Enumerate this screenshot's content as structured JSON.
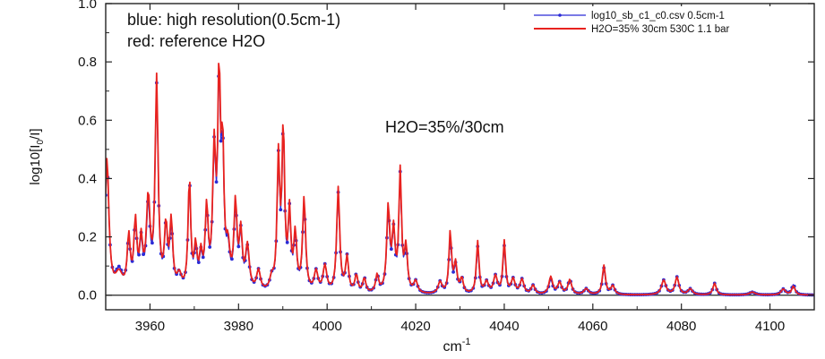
{
  "chart_data": {
    "type": "line",
    "xlabel": "cm",
    "xlabel_sup": "-1",
    "ylabel": "log10[I",
    "ylabel_sub": "0",
    "ylabel_tail": "/I]",
    "xlim": [
      3950,
      4110
    ],
    "ylim": [
      -0.05,
      1.0
    ],
    "xticks": [
      3960,
      3980,
      4000,
      4020,
      4040,
      4060,
      4080,
      4100
    ],
    "xtick_labels": [
      "3960",
      "3980",
      "4000",
      "4020",
      "4040",
      "4060",
      "4080",
      "4100"
    ],
    "yticks": [
      0.0,
      0.2,
      0.4,
      0.6,
      0.8,
      1.0
    ],
    "ytick_labels": [
      "0.0",
      "0.2",
      "0.4",
      "0.6",
      "0.8",
      "1.0"
    ],
    "reference_line_y": 0.0,
    "annotations": [
      {
        "text": "blue: high resolution(0.5cm-1)"
      },
      {
        "text": "red: reference H2O"
      },
      {
        "text": "H2O=35%/30cm"
      }
    ],
    "legend_position": "top-right",
    "series": [
      {
        "name": "log10_sb_c1_c0.csv 0.5cm-1",
        "color": "#2b2bd6",
        "marker": "dot",
        "peaks": [
          [
            3950.3,
            0.45,
            0.5
          ],
          [
            3953.0,
            0.07,
            1.0
          ],
          [
            3955.2,
            0.17,
            0.4
          ],
          [
            3956.7,
            0.22,
            0.4
          ],
          [
            3958.0,
            0.15,
            0.4
          ],
          [
            3959.6,
            0.28,
            0.5
          ],
          [
            3961.5,
            0.69,
            0.4
          ],
          [
            3963.6,
            0.2,
            0.4
          ],
          [
            3964.8,
            0.21,
            0.4
          ],
          [
            3966.6,
            0.05,
            0.6
          ],
          [
            3968.9,
            0.37,
            0.35
          ],
          [
            3970.3,
            0.13,
            0.4
          ],
          [
            3971.5,
            0.1,
            0.4
          ],
          [
            3972.8,
            0.26,
            0.4
          ],
          [
            3974.5,
            0.44,
            0.4
          ],
          [
            3975.6,
            0.66,
            0.35
          ],
          [
            3976.4,
            0.43,
            0.35
          ],
          [
            3977.6,
            0.12,
            0.5
          ],
          [
            3979.3,
            0.27,
            0.4
          ],
          [
            3980.5,
            0.18,
            0.4
          ],
          [
            3982.0,
            0.14,
            0.5
          ],
          [
            3984.5,
            0.07,
            0.5
          ],
          [
            3987.5,
            0.04,
            0.5
          ],
          [
            3989.0,
            0.43,
            0.35
          ],
          [
            3990.1,
            0.52,
            0.35
          ],
          [
            3991.5,
            0.25,
            0.35
          ],
          [
            3992.8,
            0.18,
            0.4
          ],
          [
            3994.8,
            0.3,
            0.4
          ],
          [
            3997.5,
            0.07,
            0.5
          ],
          [
            3999.5,
            0.09,
            0.5
          ],
          [
            4002.5,
            0.34,
            0.4
          ],
          [
            4004.5,
            0.12,
            0.4
          ],
          [
            4006.6,
            0.06,
            0.4
          ],
          [
            4008.4,
            0.05,
            0.4
          ],
          [
            4011.3,
            0.06,
            0.4
          ],
          [
            4013.8,
            0.27,
            0.4
          ],
          [
            4015.0,
            0.19,
            0.4
          ],
          [
            4016.5,
            0.39,
            0.35
          ],
          [
            4017.8,
            0.14,
            0.4
          ],
          [
            4020.0,
            0.04,
            0.5
          ],
          [
            4025.5,
            0.04,
            0.5
          ],
          [
            4027.8,
            0.19,
            0.35
          ],
          [
            4029.0,
            0.09,
            0.4
          ],
          [
            4030.4,
            0.05,
            0.4
          ],
          [
            4034.0,
            0.16,
            0.35
          ],
          [
            4036.0,
            0.04,
            0.5
          ],
          [
            4038.0,
            0.06,
            0.5
          ],
          [
            4040.0,
            0.16,
            0.35
          ],
          [
            4042.0,
            0.05,
            0.5
          ],
          [
            4044.0,
            0.05,
            0.5
          ],
          [
            4046.5,
            0.03,
            0.5
          ],
          [
            4050.5,
            0.05,
            0.5
          ],
          [
            4052.5,
            0.04,
            0.5
          ],
          [
            4054.8,
            0.05,
            0.5
          ],
          [
            4058.5,
            0.02,
            0.6
          ],
          [
            4062.5,
            0.09,
            0.4
          ],
          [
            4064.5,
            0.03,
            0.5
          ],
          [
            4076.0,
            0.05,
            0.6
          ],
          [
            4079.0,
            0.06,
            0.5
          ],
          [
            4082.0,
            0.02,
            0.6
          ],
          [
            4087.5,
            0.04,
            0.45
          ],
          [
            4096.0,
            0.01,
            0.8
          ],
          [
            4103.0,
            0.02,
            0.6
          ],
          [
            4105.3,
            0.035,
            0.45
          ]
        ]
      },
      {
        "name": "H2O=35% 30cm 530C 1.1 bar",
        "color": "#e8221f",
        "marker": "none",
        "peaks": [
          [
            3950.3,
            0.46,
            0.5
          ],
          [
            3953.0,
            0.06,
            1.0
          ],
          [
            3955.2,
            0.18,
            0.4
          ],
          [
            3956.7,
            0.23,
            0.4
          ],
          [
            3958.0,
            0.16,
            0.4
          ],
          [
            3959.6,
            0.31,
            0.5
          ],
          [
            3961.5,
            0.72,
            0.4
          ],
          [
            3963.6,
            0.21,
            0.4
          ],
          [
            3964.8,
            0.23,
            0.4
          ],
          [
            3966.6,
            0.05,
            0.6
          ],
          [
            3968.9,
            0.38,
            0.35
          ],
          [
            3970.3,
            0.14,
            0.4
          ],
          [
            3971.5,
            0.11,
            0.4
          ],
          [
            3972.8,
            0.27,
            0.4
          ],
          [
            3974.5,
            0.46,
            0.4
          ],
          [
            3975.6,
            0.7,
            0.35
          ],
          [
            3976.4,
            0.45,
            0.35
          ],
          [
            3977.6,
            0.13,
            0.5
          ],
          [
            3979.3,
            0.29,
            0.4
          ],
          [
            3980.5,
            0.19,
            0.4
          ],
          [
            3982.0,
            0.15,
            0.5
          ],
          [
            3984.5,
            0.07,
            0.5
          ],
          [
            3987.5,
            0.04,
            0.5
          ],
          [
            3989.0,
            0.45,
            0.35
          ],
          [
            3990.1,
            0.55,
            0.35
          ],
          [
            3991.5,
            0.26,
            0.35
          ],
          [
            3992.8,
            0.19,
            0.4
          ],
          [
            3994.8,
            0.32,
            0.4
          ],
          [
            3997.5,
            0.07,
            0.5
          ],
          [
            3999.5,
            0.09,
            0.5
          ],
          [
            4002.5,
            0.36,
            0.4
          ],
          [
            4004.5,
            0.12,
            0.4
          ],
          [
            4006.6,
            0.06,
            0.4
          ],
          [
            4008.4,
            0.05,
            0.4
          ],
          [
            4011.3,
            0.06,
            0.4
          ],
          [
            4013.8,
            0.29,
            0.4
          ],
          [
            4015.0,
            0.2,
            0.4
          ],
          [
            4016.5,
            0.41,
            0.35
          ],
          [
            4017.8,
            0.15,
            0.4
          ],
          [
            4020.0,
            0.04,
            0.5
          ],
          [
            4025.5,
            0.04,
            0.5
          ],
          [
            4027.8,
            0.21,
            0.35
          ],
          [
            4029.0,
            0.1,
            0.4
          ],
          [
            4030.4,
            0.05,
            0.4
          ],
          [
            4034.0,
            0.18,
            0.35
          ],
          [
            4036.0,
            0.04,
            0.5
          ],
          [
            4038.0,
            0.06,
            0.5
          ],
          [
            4040.0,
            0.18,
            0.35
          ],
          [
            4042.0,
            0.05,
            0.5
          ],
          [
            4044.0,
            0.05,
            0.5
          ],
          [
            4046.5,
            0.03,
            0.5
          ],
          [
            4050.5,
            0.06,
            0.5
          ],
          [
            4052.5,
            0.04,
            0.5
          ],
          [
            4054.8,
            0.05,
            0.5
          ],
          [
            4058.5,
            0.02,
            0.6
          ],
          [
            4062.5,
            0.1,
            0.4
          ],
          [
            4064.5,
            0.03,
            0.5
          ],
          [
            4076.0,
            0.05,
            0.6
          ],
          [
            4079.0,
            0.06,
            0.5
          ],
          [
            4082.0,
            0.02,
            0.6
          ],
          [
            4087.5,
            0.04,
            0.45
          ],
          [
            4096.0,
            0.01,
            0.8
          ],
          [
            4103.0,
            0.02,
            0.6
          ],
          [
            4105.3,
            0.03,
            0.45
          ]
        ]
      }
    ]
  }
}
